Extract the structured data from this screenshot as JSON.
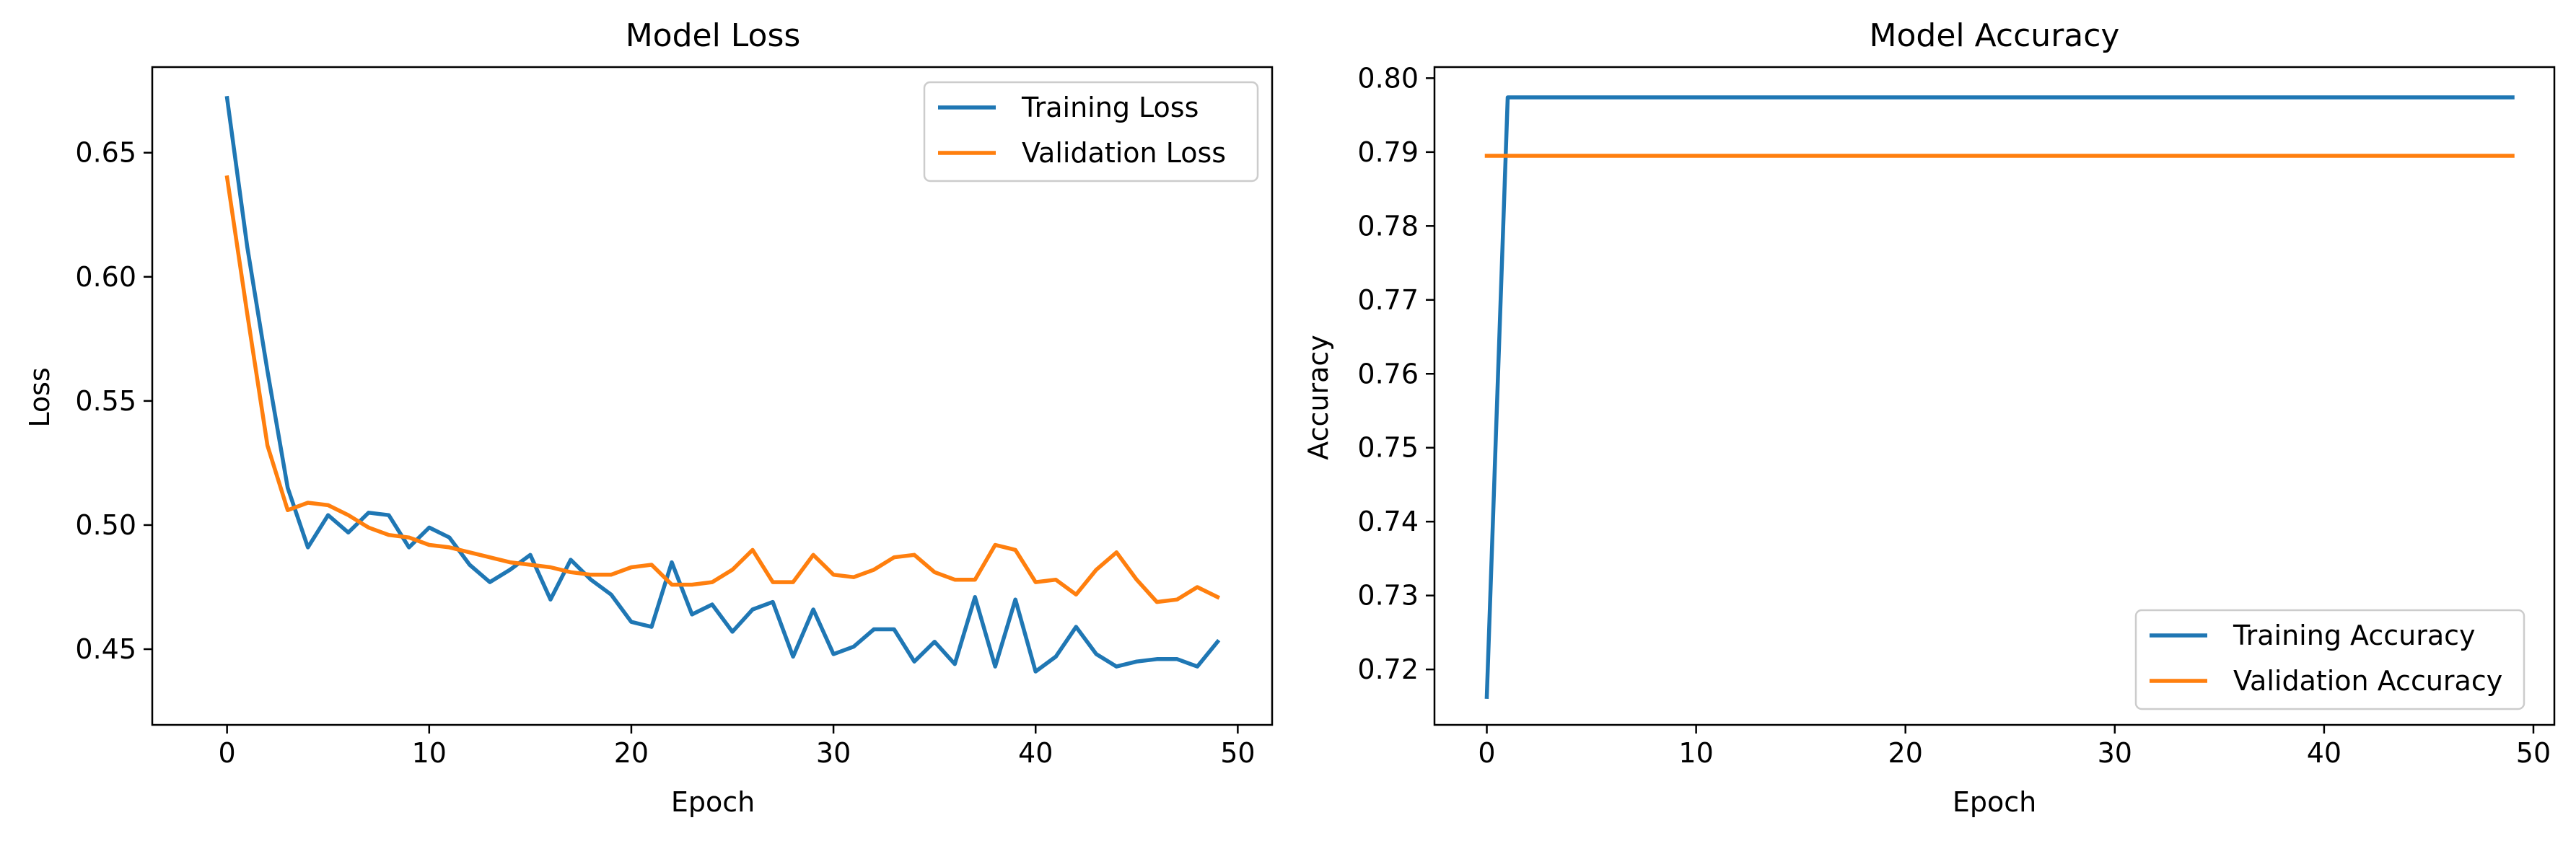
{
  "chart_data": [
    {
      "type": "line",
      "title": "Model Loss",
      "xlabel": "Epoch",
      "ylabel": "Loss",
      "xlim": [
        -3.7,
        51.7
      ],
      "ylim": [
        0.4195,
        0.6845
      ],
      "xticks": [
        0,
        10,
        20,
        30,
        40,
        50
      ],
      "yticks": [
        0.45,
        0.5,
        0.55,
        0.6,
        0.65
      ],
      "ytick_labels": [
        "0.45",
        "0.50",
        "0.55",
        "0.60",
        "0.65"
      ],
      "grid": false,
      "legend_position": "upper right",
      "series": [
        {
          "name": "Training Loss",
          "color": "#1f77b4",
          "x": [
            0,
            1,
            2,
            3,
            4,
            5,
            6,
            7,
            8,
            9,
            10,
            11,
            12,
            13,
            14,
            15,
            16,
            17,
            18,
            19,
            20,
            21,
            22,
            23,
            24,
            25,
            26,
            27,
            28,
            29,
            30,
            31,
            32,
            33,
            34,
            35,
            36,
            37,
            38,
            39,
            40,
            41,
            42,
            43,
            44,
            45,
            46,
            47,
            48,
            49
          ],
          "y": [
            0.672,
            0.612,
            0.562,
            0.515,
            0.491,
            0.504,
            0.497,
            0.505,
            0.504,
            0.491,
            0.499,
            0.495,
            0.484,
            0.477,
            0.482,
            0.488,
            0.47,
            0.486,
            0.478,
            0.472,
            0.461,
            0.459,
            0.485,
            0.464,
            0.468,
            0.457,
            0.466,
            0.469,
            0.447,
            0.466,
            0.448,
            0.451,
            0.458,
            0.458,
            0.445,
            0.453,
            0.444,
            0.471,
            0.443,
            0.47,
            0.441,
            0.447,
            0.459,
            0.448,
            0.443,
            0.445,
            0.446,
            0.446,
            0.443,
            0.453
          ]
        },
        {
          "name": "Validation Loss",
          "color": "#ff7f0e",
          "x": [
            0,
            1,
            2,
            3,
            4,
            5,
            6,
            7,
            8,
            9,
            10,
            11,
            12,
            13,
            14,
            15,
            16,
            17,
            18,
            19,
            20,
            21,
            22,
            23,
            24,
            25,
            26,
            27,
            28,
            29,
            30,
            31,
            32,
            33,
            34,
            35,
            36,
            37,
            38,
            39,
            40,
            41,
            42,
            43,
            44,
            45,
            46,
            47,
            48,
            49
          ],
          "y": [
            0.64,
            0.585,
            0.532,
            0.506,
            0.509,
            0.508,
            0.504,
            0.499,
            0.496,
            0.495,
            0.492,
            0.491,
            0.489,
            0.487,
            0.485,
            0.484,
            0.483,
            0.481,
            0.48,
            0.48,
            0.483,
            0.484,
            0.476,
            0.476,
            0.477,
            0.482,
            0.49,
            0.477,
            0.477,
            0.488,
            0.48,
            0.479,
            0.482,
            0.487,
            0.488,
            0.481,
            0.478,
            0.478,
            0.492,
            0.49,
            0.477,
            0.478,
            0.472,
            0.482,
            0.489,
            0.478,
            0.469,
            0.47,
            0.475,
            0.471
          ]
        }
      ]
    },
    {
      "type": "line",
      "title": "Model Accuracy",
      "xlabel": "Epoch",
      "ylabel": "Accuracy",
      "xlim": [
        -2.5,
        51.0
      ],
      "ylim": [
        0.7125,
        0.8015
      ],
      "xticks": [
        0,
        10,
        20,
        30,
        40,
        50
      ],
      "yticks": [
        0.72,
        0.73,
        0.74,
        0.75,
        0.76,
        0.77,
        0.78,
        0.79,
        0.8
      ],
      "ytick_labels": [
        "0.72",
        "0.73",
        "0.74",
        "0.75",
        "0.76",
        "0.77",
        "0.78",
        "0.79",
        "0.80"
      ],
      "grid": false,
      "legend_position": "lower right",
      "series": [
        {
          "name": "Training Accuracy",
          "color": "#1f77b4",
          "x": [
            0,
            1,
            2,
            3,
            4,
            5,
            6,
            7,
            8,
            9,
            10,
            11,
            12,
            13,
            14,
            15,
            16,
            17,
            18,
            19,
            20,
            21,
            22,
            23,
            24,
            25,
            26,
            27,
            28,
            29,
            30,
            31,
            32,
            33,
            34,
            35,
            36,
            37,
            38,
            39,
            40,
            41,
            42,
            43,
            44,
            45,
            46,
            47,
            48,
            49
          ],
          "y": [
            0.7163,
            0.7974,
            0.7974,
            0.7974,
            0.7974,
            0.7974,
            0.7974,
            0.7974,
            0.7974,
            0.7974,
            0.7974,
            0.7974,
            0.7974,
            0.7974,
            0.7974,
            0.7974,
            0.7974,
            0.7974,
            0.7974,
            0.7974,
            0.7974,
            0.7974,
            0.7974,
            0.7974,
            0.7974,
            0.7974,
            0.7974,
            0.7974,
            0.7974,
            0.7974,
            0.7974,
            0.7974,
            0.7974,
            0.7974,
            0.7974,
            0.7974,
            0.7974,
            0.7974,
            0.7974,
            0.7974,
            0.7974,
            0.7974,
            0.7974,
            0.7974,
            0.7974,
            0.7974,
            0.7974,
            0.7974,
            0.7974,
            0.7974
          ]
        },
        {
          "name": "Validation Accuracy",
          "color": "#ff7f0e",
          "x": [
            0,
            1,
            2,
            3,
            4,
            5,
            6,
            7,
            8,
            9,
            10,
            11,
            12,
            13,
            14,
            15,
            16,
            17,
            18,
            19,
            20,
            21,
            22,
            23,
            24,
            25,
            26,
            27,
            28,
            29,
            30,
            31,
            32,
            33,
            34,
            35,
            36,
            37,
            38,
            39,
            40,
            41,
            42,
            43,
            44,
            45,
            46,
            47,
            48,
            49
          ],
          "y": [
            0.7895,
            0.7895,
            0.7895,
            0.7895,
            0.7895,
            0.7895,
            0.7895,
            0.7895,
            0.7895,
            0.7895,
            0.7895,
            0.7895,
            0.7895,
            0.7895,
            0.7895,
            0.7895,
            0.7895,
            0.7895,
            0.7895,
            0.7895,
            0.7895,
            0.7895,
            0.7895,
            0.7895,
            0.7895,
            0.7895,
            0.7895,
            0.7895,
            0.7895,
            0.7895,
            0.7895,
            0.7895,
            0.7895,
            0.7895,
            0.7895,
            0.7895,
            0.7895,
            0.7895,
            0.7895,
            0.7895,
            0.7895,
            0.7895,
            0.7895,
            0.7895,
            0.7895,
            0.7895,
            0.7895,
            0.7895,
            0.7895,
            0.7895
          ]
        }
      ]
    }
  ]
}
